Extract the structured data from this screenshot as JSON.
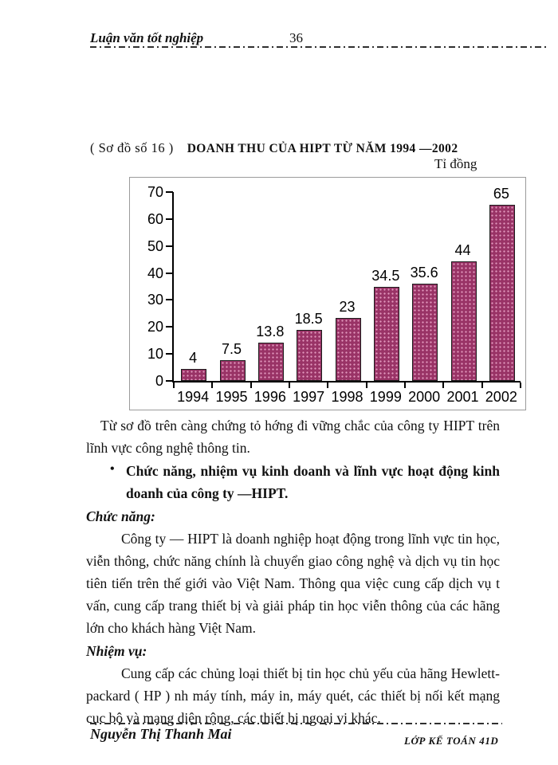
{
  "header": {
    "title": "Luận văn tốt nghiệp",
    "page_number": "36"
  },
  "figure": {
    "caption": "( Sơ đồ số 16 )",
    "title": "DOANH THU CỦA HIPT TỪ NĂM 1994 —2002",
    "unit": "Tỉ đồng"
  },
  "chart_data": {
    "type": "bar",
    "title": "DOANH THU CỦA HIPT TỪ NĂM 1994 —2002",
    "ylabel": "Tỉ đồng",
    "xlabel": "",
    "categories": [
      "1994",
      "1995",
      "1996",
      "1997",
      "1998",
      "1999",
      "2000",
      "2001",
      "2002"
    ],
    "values": [
      4,
      7.5,
      13.8,
      18.5,
      23,
      34.5,
      35.6,
      44,
      65
    ],
    "value_labels": [
      "4",
      "7.5",
      "13.8",
      "18.5",
      "23",
      "34.5",
      "35.6",
      "44",
      "65"
    ],
    "ylim": [
      0,
      70
    ],
    "yticks": [
      0,
      10,
      20,
      30,
      40,
      50,
      60,
      70
    ],
    "bar_color": "#993366",
    "grid": false,
    "legend": "none"
  },
  "body": {
    "para_intro": "Từ sơ đồ trên càng chứng tỏ hớng  đi vững chắc của công ty HIPT trên lĩnh vực công nghệ thông tin.",
    "bullet_marker": "•",
    "bullet": "Chức năng, nhiệm vụ kinh doanh và lĩnh vực hoạt động kinh doanh của công ty —HIPT.",
    "heading_chuc_nang": "Chức năng:",
    "para_chuc_nang": "Công ty — HIPT là doanh nghiệp hoạt động trong lĩnh vực tin học, viễn thông, chức năng chính là chuyển giao công nghệ và dịch vụ tin học tiên tiến trên thế giới vào Việt Nam. Thông qua việc cung cấp dịch vụ t  vấn, cung cấp trang thiết bị và giải pháp tin học viễn thông của các hãng lớn cho khách hàng Việt Nam.",
    "heading_nhiem_vu": "Nhiệm vụ:",
    "para_nhiem_vu": "Cung cấp các chủng loại thiết bị tin học chủ yếu của hãng Hewlett-packard ( HP ) nh  máy tính, máy in, máy quét, các thiết bị nối kết mạng cục bộ và mạng diện rộng, các thiết bị ngoại vi khác."
  },
  "footer": {
    "author": "Nguyễn Thị Thanh Mai",
    "class_label": "LỚP KẾ TOÁN 41D"
  }
}
